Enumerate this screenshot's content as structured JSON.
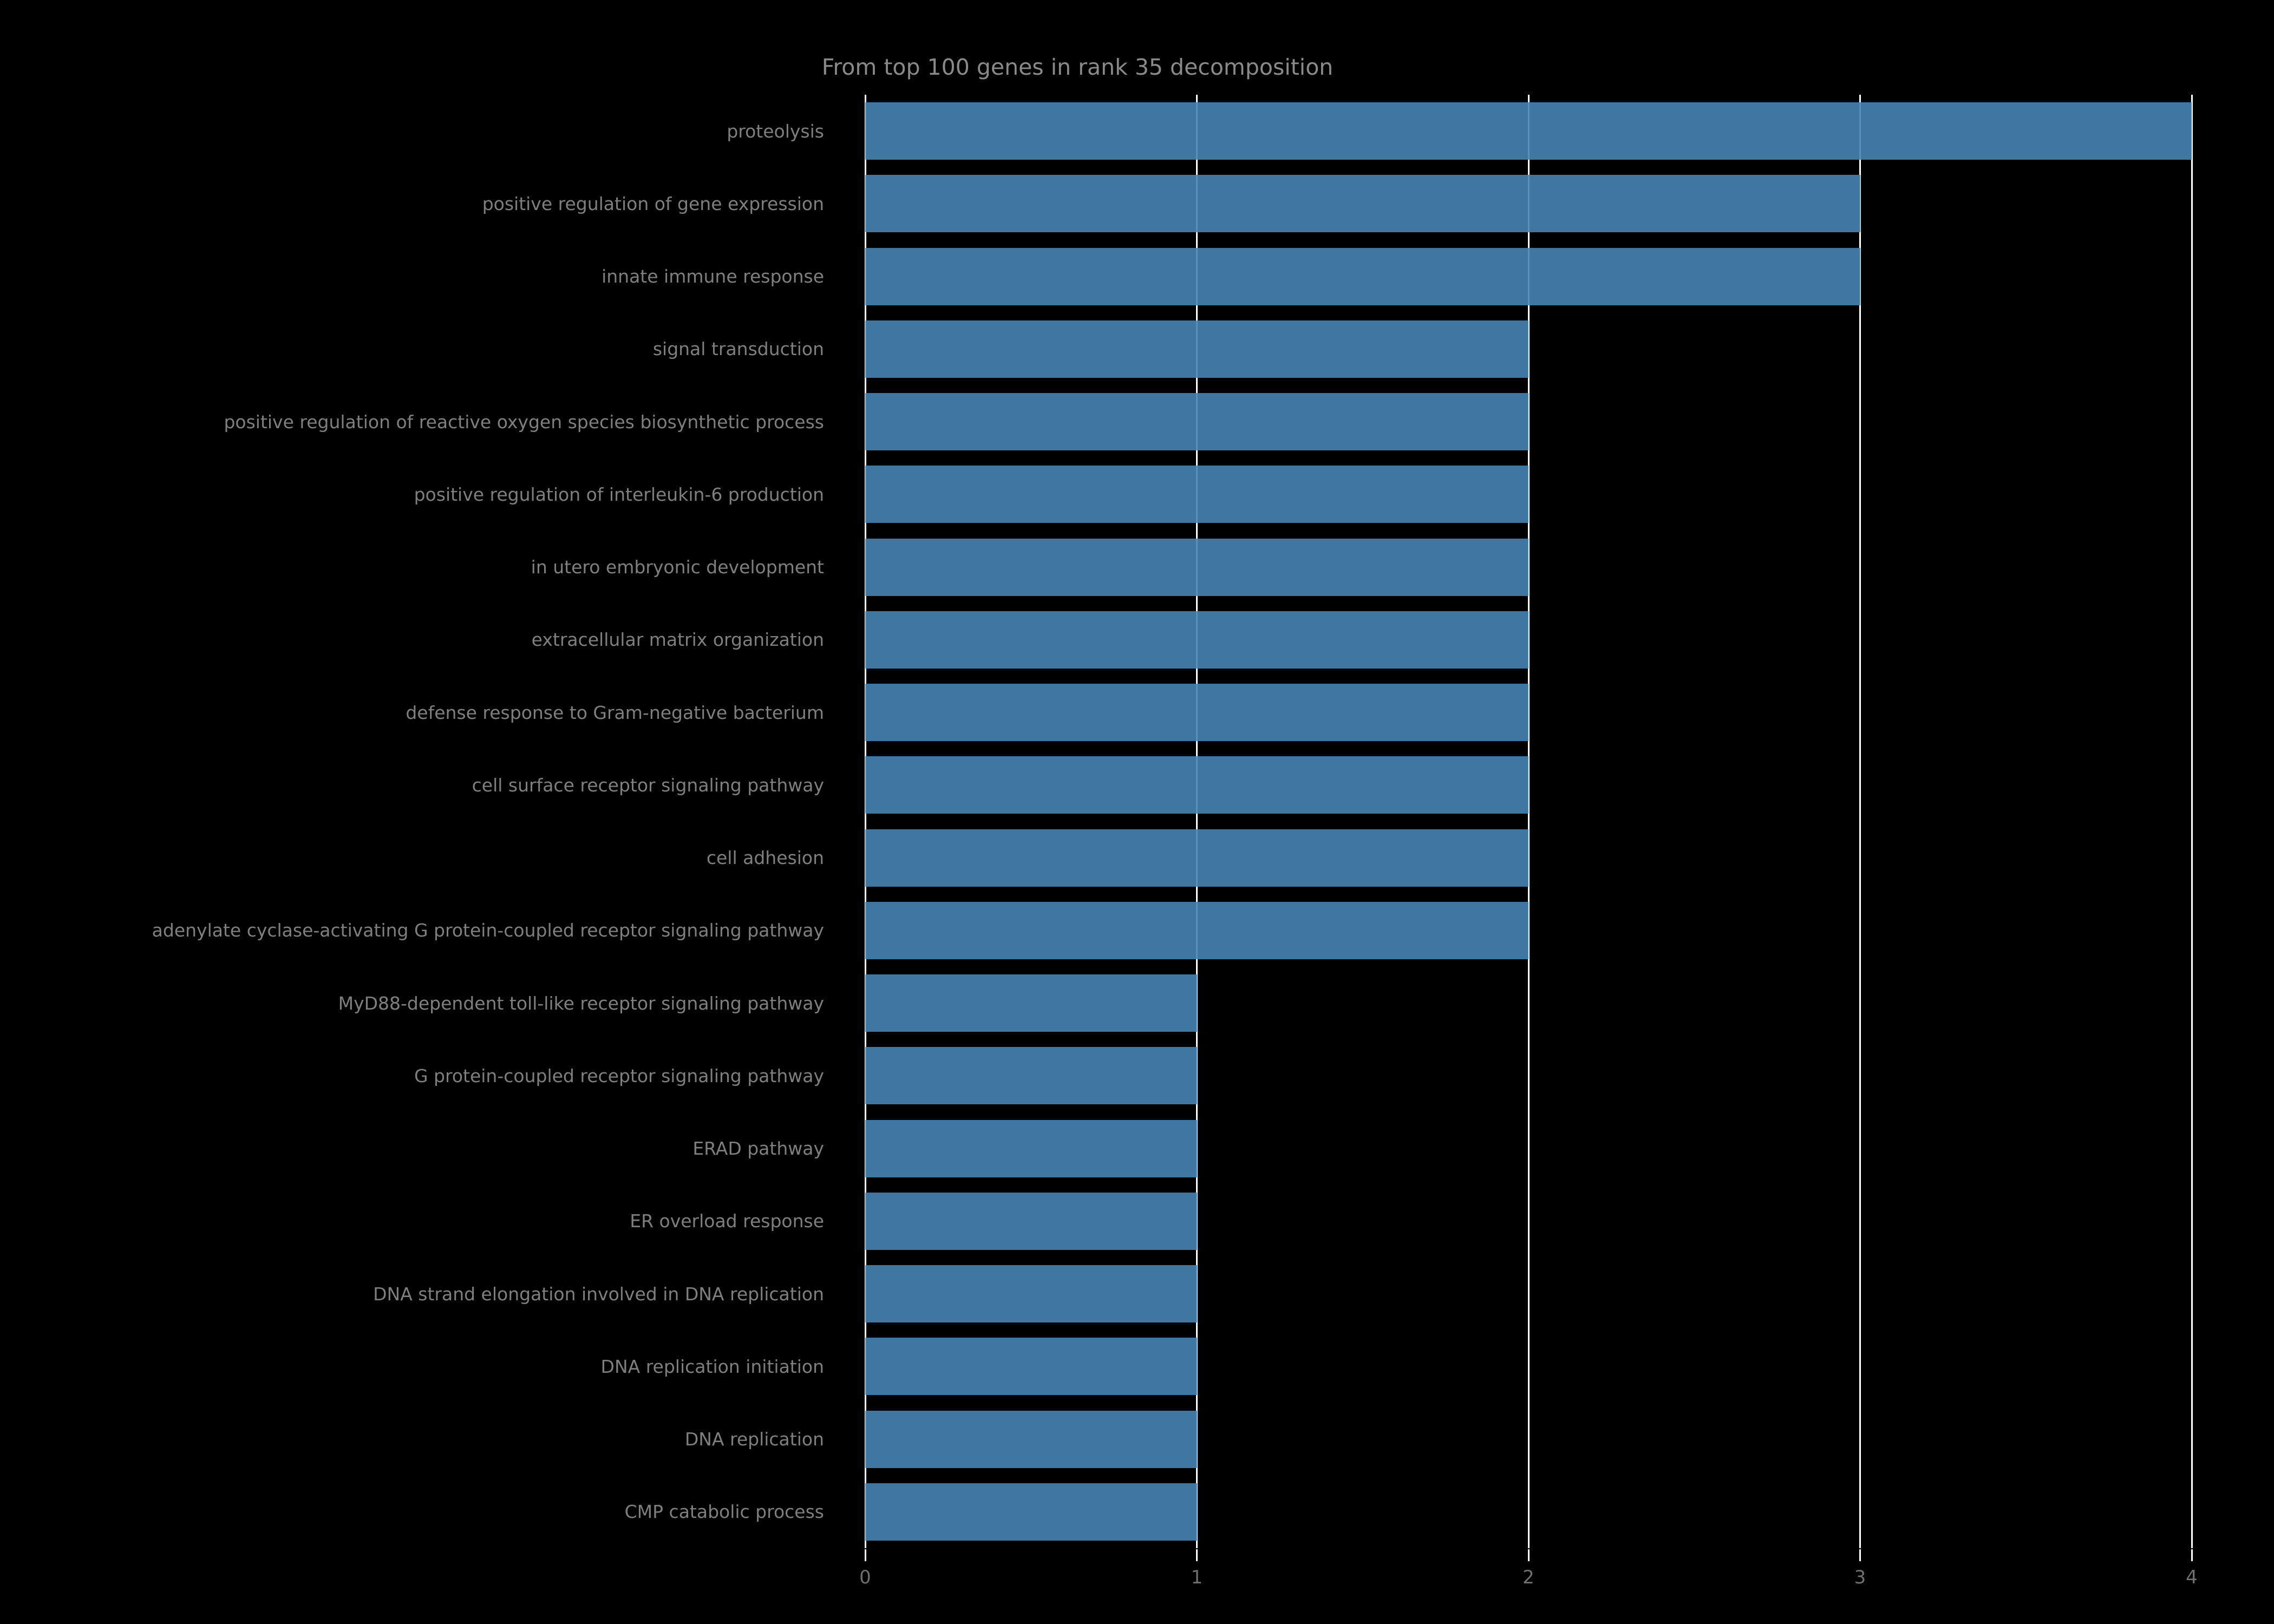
{
  "chart_data": {
    "type": "bar",
    "orientation": "horizontal",
    "title": "From top 100 genes in rank 35 decomposition",
    "categories": [
      "proteolysis",
      "positive regulation of gene expression",
      "innate immune response",
      "signal transduction",
      "positive regulation of reactive oxygen species biosynthetic process",
      "positive regulation of interleukin-6 production",
      "in utero embryonic development",
      "extracellular matrix organization",
      "defense response to Gram-negative bacterium",
      "cell surface receptor signaling pathway",
      "cell adhesion",
      "adenylate cyclase-activating G protein-coupled receptor signaling pathway",
      "MyD88-dependent toll-like receptor signaling pathway",
      "G protein-coupled receptor signaling pathway",
      "ERAD pathway",
      "ER overload response",
      "DNA strand elongation involved in DNA replication",
      "DNA replication initiation",
      "DNA replication",
      "CMP catabolic process"
    ],
    "values": [
      4,
      3,
      3,
      2,
      2,
      2,
      2,
      2,
      2,
      2,
      2,
      2,
      1,
      1,
      1,
      1,
      1,
      1,
      1,
      1
    ],
    "xlabel": "",
    "ylabel": "",
    "xlim": [
      0,
      4
    ],
    "xticks": [
      "0",
      "1",
      "2",
      "3",
      "4"
    ],
    "grid": "vertical white gridlines at each x tick",
    "legend": "none",
    "colors": {
      "background": "#000000",
      "bar": "#4683b4",
      "gridline": "#ffffff",
      "title_text": "#8a8a8a",
      "label_text": "#7f7f7f",
      "tick_text": "#6f6f6f"
    }
  }
}
